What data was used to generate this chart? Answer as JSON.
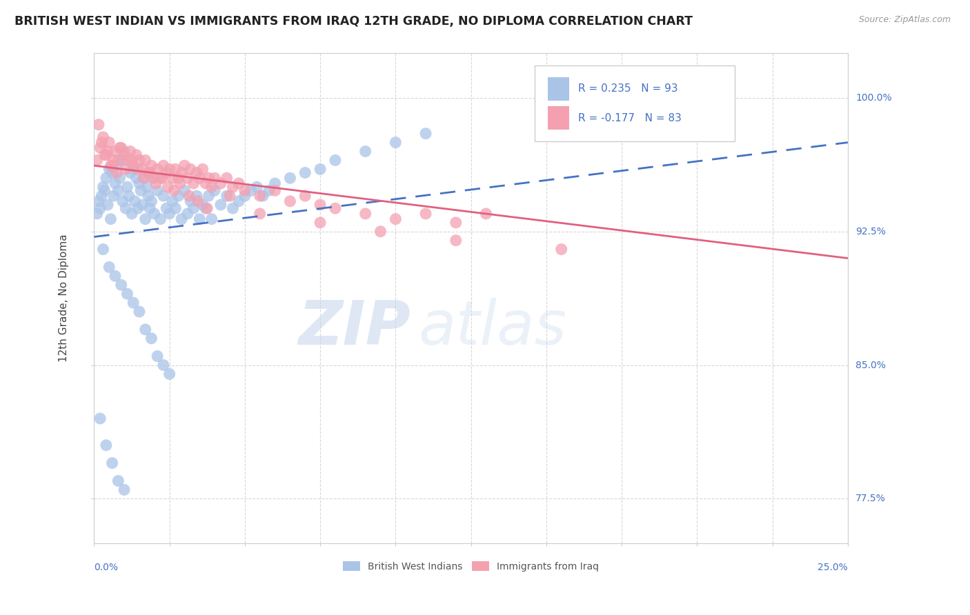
{
  "title": "BRITISH WEST INDIAN VS IMMIGRANTS FROM IRAQ 12TH GRADE, NO DIPLOMA CORRELATION CHART",
  "source_text": "Source: ZipAtlas.com",
  "ylabel_label": "12th Grade, No Diploma",
  "legend_blue_r": "R = 0.235",
  "legend_blue_n": "N = 93",
  "legend_pink_r": "R = -0.177",
  "legend_pink_n": "N = 83",
  "blue_color": "#aac4e8",
  "blue_line_color": "#4472c4",
  "pink_color": "#f4a0b0",
  "pink_line_color": "#e06080",
  "axis_label_color": "#4472c4",
  "grid_color": "#d8d8d8",
  "watermark_color": "#c8d8ec",
  "xlim": [
    0.0,
    25.0
  ],
  "ylim": [
    75.0,
    102.5
  ],
  "yticks": [
    77.5,
    85.0,
    92.5,
    100.0
  ],
  "xticks": [
    0.0,
    2.5,
    5.0,
    7.5,
    10.0,
    12.5,
    15.0,
    17.5,
    20.0,
    22.5,
    25.0
  ],
  "blue_scatter_x": [
    0.1,
    0.15,
    0.2,
    0.25,
    0.3,
    0.35,
    0.4,
    0.45,
    0.5,
    0.55,
    0.6,
    0.65,
    0.7,
    0.75,
    0.8,
    0.85,
    0.9,
    0.95,
    1.0,
    1.05,
    1.1,
    1.15,
    1.2,
    1.25,
    1.3,
    1.35,
    1.4,
    1.45,
    1.5,
    1.55,
    1.6,
    1.65,
    1.7,
    1.75,
    1.8,
    1.85,
    1.9,
    1.95,
    2.0,
    2.1,
    2.2,
    2.3,
    2.4,
    2.5,
    2.6,
    2.7,
    2.8,
    2.9,
    3.0,
    3.1,
    3.2,
    3.3,
    3.4,
    3.5,
    3.6,
    3.7,
    3.8,
    3.9,
    4.0,
    4.2,
    4.4,
    4.6,
    4.8,
    5.0,
    5.2,
    5.4,
    5.6,
    5.8,
    6.0,
    6.5,
    7.0,
    7.5,
    8.0,
    9.0,
    10.0,
    11.0,
    0.3,
    0.5,
    0.7,
    0.9,
    1.1,
    1.3,
    1.5,
    1.7,
    1.9,
    2.1,
    2.3,
    2.5,
    0.2,
    0.4,
    0.6,
    0.8,
    1.0
  ],
  "blue_scatter_y": [
    93.5,
    94.2,
    93.8,
    94.5,
    95.0,
    94.8,
    95.5,
    94.0,
    96.0,
    93.2,
    95.8,
    94.5,
    95.2,
    96.2,
    94.8,
    95.5,
    96.5,
    94.2,
    97.0,
    93.8,
    95.0,
    94.5,
    95.8,
    93.5,
    96.0,
    94.2,
    95.5,
    93.8,
    95.2,
    94.8,
    94.0,
    95.5,
    93.2,
    95.0,
    94.5,
    93.8,
    94.2,
    95.5,
    93.5,
    94.8,
    93.2,
    94.5,
    93.8,
    93.5,
    94.2,
    93.8,
    94.5,
    93.2,
    94.8,
    93.5,
    94.2,
    93.8,
    94.5,
    93.2,
    94.0,
    93.8,
    94.5,
    93.2,
    94.8,
    94.0,
    94.5,
    93.8,
    94.2,
    94.5,
    94.8,
    95.0,
    94.5,
    94.8,
    95.2,
    95.5,
    95.8,
    96.0,
    96.5,
    97.0,
    97.5,
    98.0,
    91.5,
    90.5,
    90.0,
    89.5,
    89.0,
    88.5,
    88.0,
    87.0,
    86.5,
    85.5,
    85.0,
    84.5,
    82.0,
    80.5,
    79.5,
    78.5,
    78.0
  ],
  "pink_scatter_x": [
    0.1,
    0.2,
    0.3,
    0.4,
    0.5,
    0.6,
    0.7,
    0.8,
    0.9,
    1.0,
    1.1,
    1.2,
    1.3,
    1.4,
    1.5,
    1.6,
    1.7,
    1.8,
    1.9,
    2.0,
    2.1,
    2.2,
    2.3,
    2.4,
    2.5,
    2.6,
    2.7,
    2.8,
    2.9,
    3.0,
    3.1,
    3.2,
    3.3,
    3.4,
    3.5,
    3.6,
    3.7,
    3.8,
    3.9,
    4.0,
    4.2,
    4.4,
    4.6,
    4.8,
    5.0,
    5.5,
    6.0,
    6.5,
    7.0,
    7.5,
    8.0,
    9.0,
    10.0,
    11.0,
    12.0,
    13.0,
    0.25,
    0.45,
    0.65,
    0.85,
    1.05,
    1.25,
    1.45,
    1.65,
    1.85,
    2.05,
    2.25,
    2.45,
    2.65,
    2.85,
    3.15,
    3.45,
    3.75,
    0.15,
    0.35,
    0.55,
    0.75,
    4.5,
    5.5,
    7.5,
    9.5,
    12.0,
    15.5
  ],
  "pink_scatter_y": [
    96.5,
    97.2,
    97.8,
    96.8,
    97.5,
    96.2,
    97.0,
    96.5,
    97.2,
    96.8,
    96.5,
    97.0,
    96.2,
    96.8,
    96.5,
    96.0,
    96.5,
    95.8,
    96.2,
    95.5,
    96.0,
    95.5,
    96.2,
    95.8,
    96.0,
    95.5,
    96.0,
    95.5,
    95.8,
    96.2,
    95.5,
    96.0,
    95.2,
    95.8,
    95.5,
    96.0,
    95.2,
    95.5,
    95.0,
    95.5,
    95.2,
    95.5,
    95.0,
    95.2,
    94.8,
    94.5,
    94.8,
    94.2,
    94.5,
    94.0,
    93.8,
    93.5,
    93.2,
    93.5,
    93.0,
    93.5,
    97.5,
    97.0,
    96.5,
    97.2,
    96.0,
    96.5,
    96.0,
    95.5,
    95.8,
    95.2,
    95.5,
    95.0,
    94.8,
    95.2,
    94.5,
    94.2,
    93.8,
    98.5,
    96.8,
    96.2,
    95.8,
    94.5,
    93.5,
    93.0,
    92.5,
    92.0,
    91.5
  ],
  "blue_line_x": [
    0.0,
    25.0
  ],
  "blue_line_y": [
    92.2,
    97.5
  ],
  "pink_line_x": [
    0.0,
    25.0
  ],
  "pink_line_y": [
    96.2,
    91.0
  ]
}
